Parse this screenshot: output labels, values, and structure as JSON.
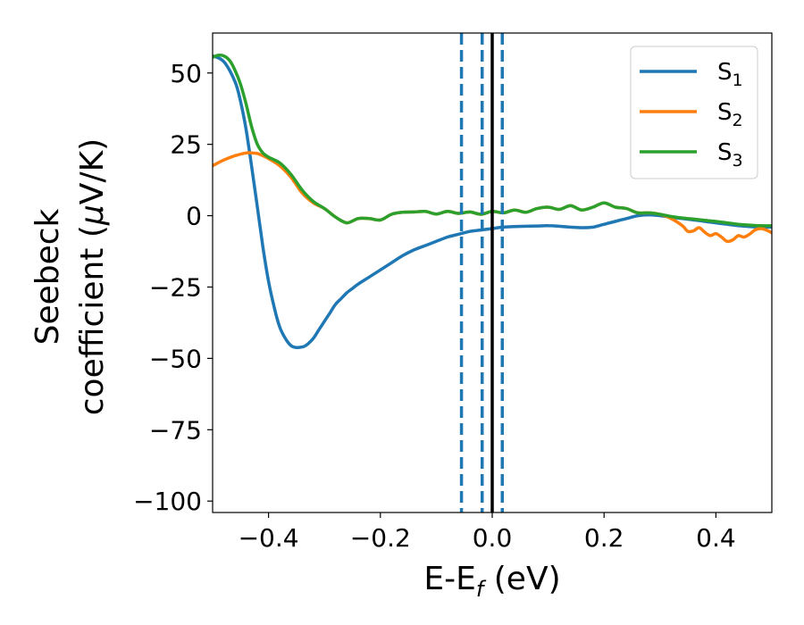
{
  "chart_data": {
    "type": "line",
    "xlabel": "E-E",
    "xlabel_sub": "f",
    "xlabel_unit": " (eV)",
    "ylabel_line1": "Seebeck",
    "ylabel_line2": "coefficient  (",
    "ylabel_mu": "μ",
    "ylabel_unit": "V/K)",
    "xlim": [
      -0.5,
      0.5
    ],
    "ylim": [
      -104,
      64
    ],
    "xticks": [
      -0.4,
      -0.2,
      0.0,
      0.2,
      0.4
    ],
    "xtick_labels": [
      "−0.4",
      "−0.2",
      "0.0",
      "0.2",
      "0.4"
    ],
    "yticks": [
      50,
      25,
      0,
      -25,
      -50,
      -75,
      -100
    ],
    "ytick_labels": [
      "50",
      "25",
      "0",
      "−25",
      "−50",
      "−75",
      "−100"
    ],
    "grid": false,
    "legend_position": "top-right",
    "vertical_lines": [
      {
        "x": -0.055,
        "style": "dashed",
        "color": "#1f77b4"
      },
      {
        "x": -0.018,
        "style": "dashed",
        "color": "#1f77b4"
      },
      {
        "x": 0.018,
        "style": "dashed",
        "color": "#1f77b4"
      },
      {
        "x": 0.0,
        "style": "solid",
        "color": "#000000"
      }
    ],
    "series": [
      {
        "name": "S",
        "name_sub": "1",
        "color": "#1f77b4",
        "x": [
          -0.5,
          -0.48,
          -0.46,
          -0.45,
          -0.44,
          -0.43,
          -0.42,
          -0.41,
          -0.4,
          -0.39,
          -0.38,
          -0.37,
          -0.36,
          -0.35,
          -0.34,
          -0.335,
          -0.33,
          -0.32,
          -0.31,
          -0.3,
          -0.29,
          -0.28,
          -0.27,
          -0.26,
          -0.25,
          -0.24,
          -0.22,
          -0.2,
          -0.18,
          -0.16,
          -0.14,
          -0.12,
          -0.1,
          -0.08,
          -0.06,
          -0.04,
          -0.02,
          0.0,
          0.02,
          0.04,
          0.06,
          0.08,
          0.1,
          0.12,
          0.14,
          0.16,
          0.18,
          0.2,
          0.22,
          0.24,
          0.26,
          0.28,
          0.3,
          0.32,
          0.34,
          0.36,
          0.38,
          0.4,
          0.42,
          0.44,
          0.46,
          0.48,
          0.5
        ],
        "y": [
          56,
          54,
          47,
          40,
          30,
          17,
          3,
          -11,
          -23,
          -32,
          -39,
          -43,
          -45.5,
          -46.2,
          -46,
          -45.7,
          -45,
          -43,
          -40,
          -37,
          -34,
          -31,
          -29,
          -27,
          -25.5,
          -24,
          -21.5,
          -19,
          -16.5,
          -14,
          -12,
          -10.5,
          -9,
          -7.5,
          -6.5,
          -5.5,
          -5,
          -4.5,
          -4,
          -3.8,
          -3.7,
          -3.6,
          -3.5,
          -3.7,
          -4,
          -4.2,
          -4,
          -3,
          -2,
          -1,
          0,
          0.3,
          0,
          -0.5,
          -1,
          -1.5,
          -2,
          -2.5,
          -3,
          -3.5,
          -3.8,
          -4,
          -4
        ]
      },
      {
        "name": "S",
        "name_sub": "2",
        "color": "#ff7f0e",
        "x": [
          -0.5,
          -0.48,
          -0.46,
          -0.44,
          -0.43,
          -0.42,
          -0.41,
          -0.4,
          -0.38,
          -0.36,
          -0.34,
          -0.32,
          -0.3,
          -0.28,
          -0.26,
          -0.24,
          -0.22,
          -0.2,
          -0.18,
          -0.16,
          -0.14,
          -0.12,
          -0.1,
          -0.08,
          -0.06,
          -0.04,
          -0.02,
          0.0,
          0.02,
          0.04,
          0.06,
          0.08,
          0.1,
          0.12,
          0.14,
          0.16,
          0.18,
          0.2,
          0.22,
          0.24,
          0.26,
          0.28,
          0.3,
          0.32,
          0.34,
          0.35,
          0.36,
          0.37,
          0.38,
          0.39,
          0.4,
          0.41,
          0.42,
          0.43,
          0.44,
          0.45,
          0.46,
          0.47,
          0.48,
          0.49,
          0.5
        ],
        "y": [
          17.5,
          19.5,
          21,
          22,
          22,
          21.8,
          21,
          20,
          17.5,
          13.5,
          8,
          4.5,
          2.5,
          -0.5,
          -2.5,
          -1,
          -1,
          -1.5,
          0.5,
          1.2,
          1.3,
          1.5,
          0.6,
          1.5,
          0.8,
          1.3,
          0.5,
          1.5,
          1.0,
          2.0,
          1.2,
          2.5,
          3.0,
          2.2,
          3.5,
          2.0,
          3.0,
          4.5,
          3.0,
          2.5,
          1.0,
          1.0,
          0.5,
          -1,
          -3.5,
          -5.5,
          -5.3,
          -4.2,
          -5.8,
          -7,
          -6.3,
          -7.5,
          -9,
          -8.5,
          -7,
          -7.5,
          -6.5,
          -5,
          -4.5,
          -5,
          -6
        ]
      },
      {
        "name": "S",
        "name_sub": "3",
        "color": "#2ca02c",
        "x": [
          -0.5,
          -0.49,
          -0.48,
          -0.47,
          -0.46,
          -0.45,
          -0.44,
          -0.43,
          -0.42,
          -0.41,
          -0.4,
          -0.38,
          -0.36,
          -0.34,
          -0.32,
          -0.3,
          -0.28,
          -0.26,
          -0.24,
          -0.22,
          -0.2,
          -0.18,
          -0.16,
          -0.14,
          -0.12,
          -0.1,
          -0.08,
          -0.06,
          -0.04,
          -0.02,
          0.0,
          0.02,
          0.04,
          0.06,
          0.08,
          0.1,
          0.12,
          0.14,
          0.16,
          0.18,
          0.2,
          0.22,
          0.24,
          0.26,
          0.28,
          0.3,
          0.32,
          0.34,
          0.36,
          0.38,
          0.4,
          0.42,
          0.44,
          0.46,
          0.48,
          0.5
        ],
        "y": [
          55.5,
          56.2,
          56,
          54.5,
          51,
          46,
          39,
          31,
          25,
          22,
          20.5,
          18.5,
          14.5,
          9,
          5,
          2.5,
          -0.5,
          -2.5,
          -1,
          -1,
          -1.5,
          0.5,
          1.2,
          1.3,
          1.5,
          0.6,
          1.5,
          0.8,
          1.3,
          0.5,
          1.5,
          1.0,
          2.0,
          1.2,
          2.5,
          3.0,
          2.2,
          3.5,
          2.0,
          3.0,
          4.5,
          3.0,
          2.5,
          1.0,
          1.0,
          0.5,
          -0.3,
          -0.8,
          -1.2,
          -1.6,
          -2,
          -2.5,
          -3,
          -3.3,
          -3.5,
          -3.5
        ]
      }
    ]
  }
}
